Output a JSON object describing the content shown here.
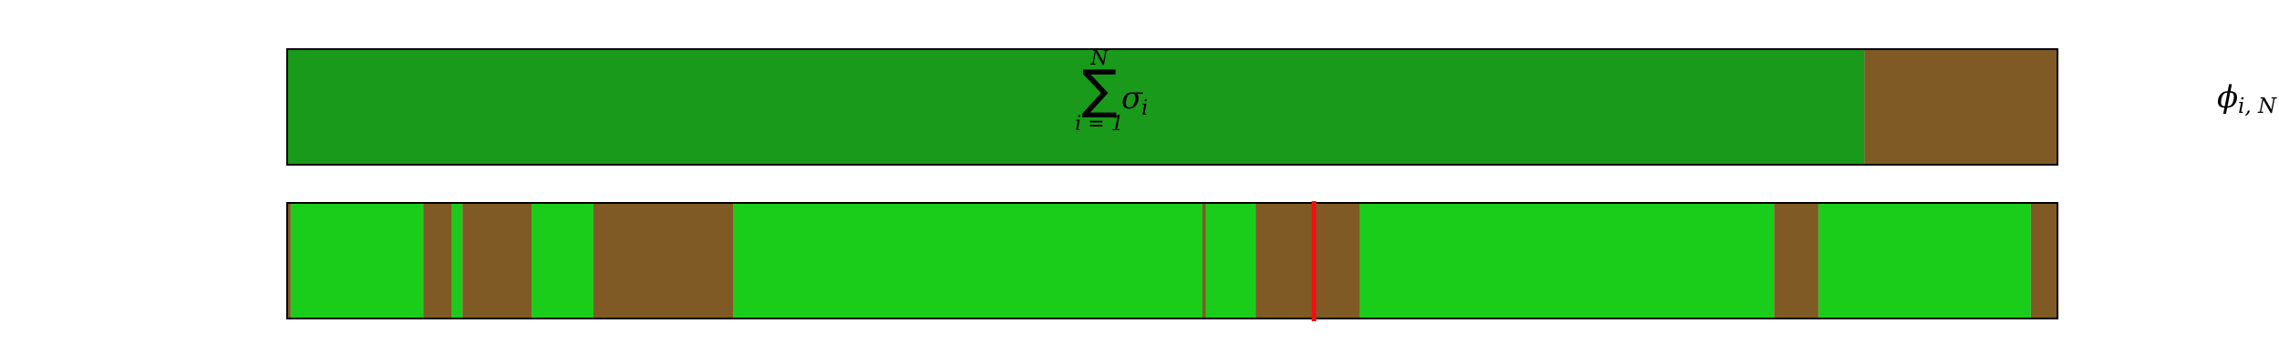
{
  "colors": {
    "dark_green": "#1a9a1a",
    "light_green": "#1acd1a",
    "brown": "#7f5a25",
    "marker": "#ee1111",
    "border": "#000000"
  },
  "chart_data": [
    {
      "type": "bar",
      "orientation": "horizontal-stacked",
      "name": "top-bar",
      "x_range": [
        0,
        1
      ],
      "label": {
        "symbol": "σ",
        "subscript": "i",
        "sum_lower": "i = 1",
        "sum_upper": "N"
      },
      "segments": [
        {
          "start": 0.0,
          "end": 0.891,
          "color": "dark_green"
        },
        {
          "start": 0.891,
          "end": 1.0,
          "color": "brown"
        }
      ]
    },
    {
      "type": "bar",
      "orientation": "horizontal-stacked",
      "name": "bottom-bar",
      "x_range": [
        0,
        1
      ],
      "marker": 0.58,
      "segments": [
        {
          "start": 0.0,
          "end": 0.002,
          "color": "brown"
        },
        {
          "start": 0.002,
          "end": 0.077,
          "color": "light_green"
        },
        {
          "start": 0.077,
          "end": 0.093,
          "color": "brown"
        },
        {
          "start": 0.093,
          "end": 0.099,
          "color": "light_green"
        },
        {
          "start": 0.099,
          "end": 0.138,
          "color": "brown"
        },
        {
          "start": 0.138,
          "end": 0.173,
          "color": "light_green"
        },
        {
          "start": 0.173,
          "end": 0.252,
          "color": "brown"
        },
        {
          "start": 0.252,
          "end": 0.517,
          "color": "light_green"
        },
        {
          "start": 0.517,
          "end": 0.519,
          "color": "brown"
        },
        {
          "start": 0.519,
          "end": 0.547,
          "color": "light_green"
        },
        {
          "start": 0.547,
          "end": 0.606,
          "color": "brown"
        },
        {
          "start": 0.606,
          "end": 0.84,
          "color": "light_green"
        },
        {
          "start": 0.84,
          "end": 0.865,
          "color": "brown"
        },
        {
          "start": 0.865,
          "end": 0.985,
          "color": "light_green"
        },
        {
          "start": 0.985,
          "end": 1.0,
          "color": "brown"
        }
      ]
    }
  ],
  "side_label": {
    "symbol": "ϕ",
    "subscript": "i, N"
  }
}
